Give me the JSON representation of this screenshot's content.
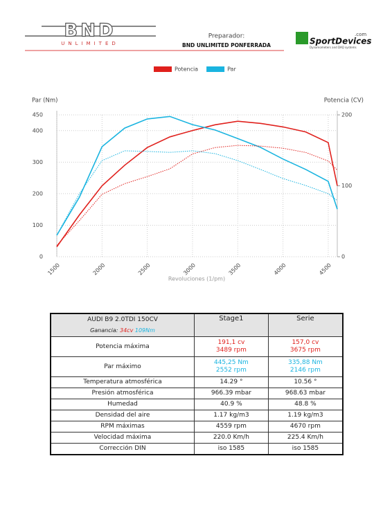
{
  "header": {
    "logo": "BND",
    "logo_sub": "UNLIMITED",
    "preparer_label": "Preparador:",
    "preparer": "BND UNLIMITED PONFERRADA",
    "sd_logo": "SportDevices",
    "sd_com": ".com",
    "sd_tag": "Dynamometers and DAQ systems"
  },
  "chart_data": {
    "type": "line",
    "xlabel": "Revoluciones (1/pm)",
    "ylabel": "Par (Nm)",
    "y2label": "Potencia (CV)",
    "x": [
      1500,
      1750,
      2000,
      2250,
      2500,
      2750,
      3000,
      3250,
      3500,
      3750,
      4000,
      4250,
      4500,
      4600
    ],
    "series": [
      {
        "name": "Potencia",
        "color": "#e0201c",
        "axis": "y2",
        "values": [
          14,
          59,
          100,
          129,
          154,
          169,
          178,
          186,
          191,
          188,
          183,
          176,
          161,
          100
        ]
      },
      {
        "name": "Par",
        "color": "#1ab4e0",
        "values": [
          68,
          189,
          349,
          408,
          437,
          445,
          419,
          402,
          375,
          347,
          310,
          277,
          239,
          151
        ]
      },
      {
        "color": "#e0201c",
        "axis": "y2",
        "dashed": true,
        "values": [
          16,
          51,
          88,
          103,
          113,
          124,
          145,
          154,
          157,
          156,
          153,
          147,
          135,
          122
        ]
      },
      {
        "color": "#1ab4e0",
        "dashed": true,
        "values": [
          68,
          200,
          305,
          336,
          334,
          331,
          336,
          327,
          305,
          277,
          248,
          226,
          200,
          178
        ]
      }
    ],
    "xlim": [
      1500,
      4600
    ],
    "xticks": [
      1500,
      2000,
      2500,
      3000,
      3500,
      4000,
      4500
    ],
    "ylim": [
      0,
      450
    ],
    "yticks": [
      0,
      100,
      200,
      300,
      400,
      450
    ],
    "y2lim": [
      0,
      200
    ],
    "y2ticks": [
      0,
      100,
      200
    ],
    "grid": true,
    "legend": "top"
  },
  "table": {
    "title": "AUDI B9 2.0TDI 150CV",
    "gain_label": "Ganancia:",
    "gain_power": "34cv",
    "gain_torque": "109Nm",
    "columns": [
      "Stage1",
      "Serie"
    ],
    "rows": [
      [
        "Potencia máxima",
        [
          "191,1 cv",
          "3489 rpm"
        ],
        [
          "157,0 cv",
          "3675 rpm"
        ]
      ],
      [
        "Par máximo",
        [
          "445,25 Nm",
          "2552 rpm"
        ],
        [
          "335,88 Nm",
          "2146 rpm"
        ]
      ],
      [
        "Temperatura atmosférica",
        [
          "14.29 °"
        ],
        [
          "10.56 °"
        ]
      ],
      [
        "Presión atmosférica",
        [
          "966.39 mbar"
        ],
        [
          "968.63 mbar"
        ]
      ],
      [
        "Humedad",
        [
          "40.9 %"
        ],
        [
          "48.8 %"
        ]
      ],
      [
        "Densidad del aire",
        [
          "1.17 kg/m3"
        ],
        [
          "1.19 kg/m3"
        ]
      ],
      [
        "RPM máximas",
        [
          "4559 rpm"
        ],
        [
          "4670 rpm"
        ]
      ],
      [
        "Velocidad máxima",
        [
          "220.0 Km/h"
        ],
        [
          "225.4 Km/h"
        ]
      ],
      [
        "Corrección DIN",
        [
          "iso 1585"
        ],
        [
          "iso 1585"
        ]
      ]
    ]
  }
}
